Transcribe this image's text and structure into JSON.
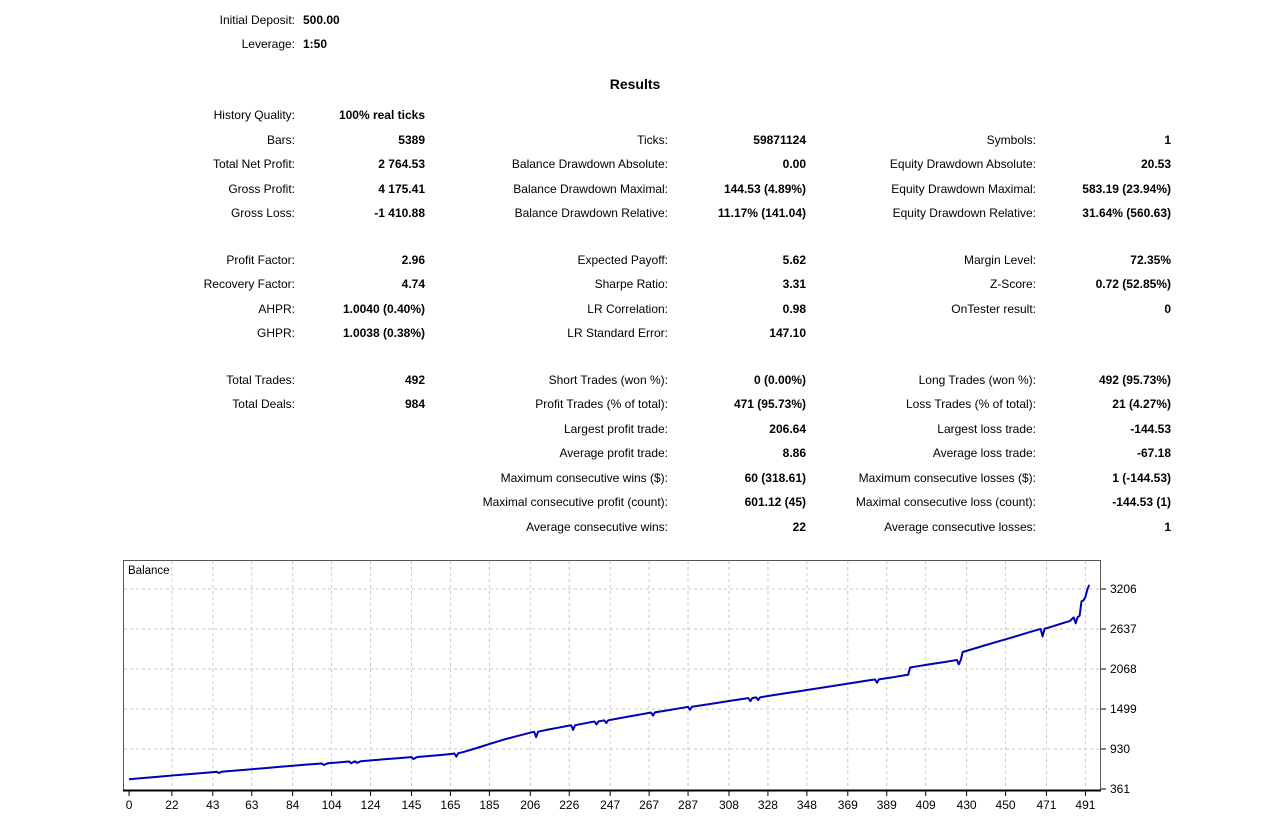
{
  "deposit_info": {
    "rows": [
      {
        "label": "Initial Deposit:",
        "value": "500.00"
      },
      {
        "label": "Leverage:",
        "value": "1:50"
      }
    ]
  },
  "results_title": "Results",
  "stats": {
    "rows": [
      [
        "History Quality:",
        "100% real ticks",
        "",
        "",
        "",
        ""
      ],
      [
        "Bars:",
        "5389",
        "Ticks:",
        "59871124",
        "Symbols:",
        "1"
      ],
      [
        "Total Net Profit:",
        "2 764.53",
        "Balance Drawdown Absolute:",
        "0.00",
        "Equity Drawdown Absolute:",
        "20.53"
      ],
      [
        "Gross Profit:",
        "4 175.41",
        "Balance Drawdown Maximal:",
        "144.53 (4.89%)",
        "Equity Drawdown Maximal:",
        "583.19 (23.94%)"
      ],
      [
        "Gross Loss:",
        "-1 410.88",
        "Balance Drawdown Relative:",
        "11.17% (141.04)",
        "Equity Drawdown Relative:",
        "31.64% (560.63)"
      ],
      null,
      [
        "Profit Factor:",
        "2.96",
        "Expected Payoff:",
        "5.62",
        "Margin Level:",
        "72.35%"
      ],
      [
        "Recovery Factor:",
        "4.74",
        "Sharpe Ratio:",
        "3.31",
        "Z-Score:",
        "0.72 (52.85%)"
      ],
      [
        "AHPR:",
        "1.0040 (0.40%)",
        "LR Correlation:",
        "0.98",
        "OnTester result:",
        "0"
      ],
      [
        "GHPR:",
        "1.0038 (0.38%)",
        "LR Standard Error:",
        "147.10",
        "",
        ""
      ],
      null,
      [
        "Total Trades:",
        "492",
        "Short Trades (won %):",
        "0 (0.00%)",
        "Long Trades (won %):",
        "492 (95.73%)"
      ],
      [
        "Total Deals:",
        "984",
        "Profit Trades (% of total):",
        "471 (95.73%)",
        "Loss Trades (% of total):",
        "21 (4.27%)"
      ],
      [
        "",
        "",
        "Largest profit trade:",
        "206.64",
        "Largest loss trade:",
        "-144.53"
      ],
      [
        "",
        "",
        "Average profit trade:",
        "8.86",
        "Average loss trade:",
        "-67.18"
      ],
      [
        "",
        "",
        "Maximum consecutive wins ($):",
        "60 (318.61)",
        "Maximum consecutive losses ($):",
        "1 (-144.53)"
      ],
      [
        "",
        "",
        "Maximal consecutive profit (count):",
        "601.12 (45)",
        "Maximal consecutive loss (count):",
        "-144.53 (1)"
      ],
      [
        "",
        "",
        "Average consecutive wins:",
        "22",
        "Average consecutive losses:",
        "1"
      ]
    ]
  },
  "chart_data": {
    "type": "line",
    "title": "Balance",
    "xlabel": "",
    "ylabel": "",
    "x_ticks": [
      0,
      22,
      43,
      63,
      84,
      104,
      124,
      145,
      165,
      185,
      206,
      226,
      247,
      267,
      287,
      308,
      328,
      348,
      369,
      389,
      409,
      430,
      450,
      471,
      491
    ],
    "y_ticks": [
      361,
      930,
      1499,
      2068,
      2637,
      3206
    ],
    "x_range": [
      -3.1,
      499
    ],
    "y_range": [
      332,
      3619
    ],
    "grid": "dashed",
    "legend": "none",
    "line_color": "#0000b8",
    "grid_color": "#c9c9c9",
    "axis_color": "#000000",
    "border_color": "#555555",
    "series": [
      {
        "name": "Balance",
        "points": [
          [
            0,
            500
          ],
          [
            8,
            518
          ],
          [
            15,
            535
          ],
          [
            22,
            552
          ],
          [
            30,
            570
          ],
          [
            38,
            588
          ],
          [
            44,
            602
          ],
          [
            45,
            606
          ],
          [
            46,
            588
          ],
          [
            48,
            608
          ],
          [
            55,
            624
          ],
          [
            63,
            642
          ],
          [
            70,
            658
          ],
          [
            77,
            675
          ],
          [
            84,
            692
          ],
          [
            91,
            708
          ],
          [
            98,
            722
          ],
          [
            99,
            724
          ],
          [
            100,
            702
          ],
          [
            102,
            726
          ],
          [
            107,
            738
          ],
          [
            112,
            750
          ],
          [
            113,
            752
          ],
          [
            114,
            728
          ],
          [
            116,
            754
          ],
          [
            117,
            732
          ],
          [
            119,
            756
          ],
          [
            125,
            770
          ],
          [
            131,
            783
          ],
          [
            138,
            798
          ],
          [
            144,
            812
          ],
          [
            145,
            814
          ],
          [
            146,
            788
          ],
          [
            148,
            816
          ],
          [
            154,
            830
          ],
          [
            160,
            844
          ],
          [
            164,
            854
          ],
          [
            166,
            862
          ],
          [
            167,
            866
          ],
          [
            168,
            822
          ],
          [
            169,
            868
          ],
          [
            172,
            890
          ],
          [
            176,
            922
          ],
          [
            181,
            965
          ],
          [
            186,
            1010
          ],
          [
            192,
            1060
          ],
          [
            198,
            1105
          ],
          [
            204,
            1148
          ],
          [
            207,
            1168
          ],
          [
            208,
            1174
          ],
          [
            209,
            1098
          ],
          [
            210,
            1176
          ],
          [
            215,
            1205
          ],
          [
            220,
            1232
          ],
          [
            226,
            1262
          ],
          [
            227,
            1266
          ],
          [
            228,
            1202
          ],
          [
            229,
            1268
          ],
          [
            233,
            1290
          ],
          [
            238,
            1316
          ],
          [
            239,
            1320
          ],
          [
            240,
            1278
          ],
          [
            241,
            1322
          ],
          [
            243,
            1332
          ],
          [
            244,
            1336
          ],
          [
            245,
            1300
          ],
          [
            246,
            1338
          ],
          [
            251,
            1364
          ],
          [
            257,
            1394
          ],
          [
            263,
            1424
          ],
          [
            267,
            1444
          ],
          [
            268,
            1448
          ],
          [
            269,
            1405
          ],
          [
            270,
            1450
          ],
          [
            276,
            1478
          ],
          [
            283,
            1510
          ],
          [
            286,
            1524
          ],
          [
            287,
            1528
          ],
          [
            288,
            1488
          ],
          [
            289,
            1530
          ],
          [
            295,
            1556
          ],
          [
            302,
            1586
          ],
          [
            308,
            1612
          ],
          [
            314,
            1638
          ],
          [
            317,
            1650
          ],
          [
            318,
            1654
          ],
          [
            319,
            1610
          ],
          [
            320,
            1656
          ],
          [
            321,
            1660
          ],
          [
            322,
            1664
          ],
          [
            323,
            1625
          ],
          [
            324,
            1666
          ],
          [
            330,
            1692
          ],
          [
            337,
            1722
          ],
          [
            344,
            1752
          ],
          [
            351,
            1782
          ],
          [
            358,
            1812
          ],
          [
            365,
            1842
          ],
          [
            372,
            1872
          ],
          [
            378,
            1898
          ],
          [
            382,
            1915
          ],
          [
            383,
            1918
          ],
          [
            384,
            1872
          ],
          [
            385,
            1920
          ],
          [
            390,
            1942
          ],
          [
            395,
            1964
          ],
          [
            399,
            1982
          ],
          [
            400,
            1986
          ],
          [
            401,
            2090
          ],
          [
            405,
            2108
          ],
          [
            410,
            2130
          ],
          [
            415,
            2152
          ],
          [
            420,
            2174
          ],
          [
            424,
            2192
          ],
          [
            425,
            2196
          ],
          [
            426,
            2135
          ],
          [
            427,
            2198
          ],
          [
            428,
            2310
          ],
          [
            434,
            2360
          ],
          [
            440,
            2410
          ],
          [
            446,
            2458
          ],
          [
            452,
            2506
          ],
          [
            457,
            2548
          ],
          [
            462,
            2590
          ],
          [
            466,
            2622
          ],
          [
            468,
            2638
          ],
          [
            469,
            2532
          ],
          [
            470,
            2640
          ],
          [
            474,
            2674
          ],
          [
            478,
            2708
          ],
          [
            481,
            2734
          ],
          [
            483,
            2750
          ],
          [
            485,
            2802
          ],
          [
            486,
            2718
          ],
          [
            487,
            2806
          ],
          [
            488,
            2825
          ],
          [
            489,
            3030
          ],
          [
            490,
            3045
          ],
          [
            491,
            3095
          ],
          [
            492,
            3200
          ],
          [
            493,
            3264
          ]
        ]
      }
    ]
  }
}
